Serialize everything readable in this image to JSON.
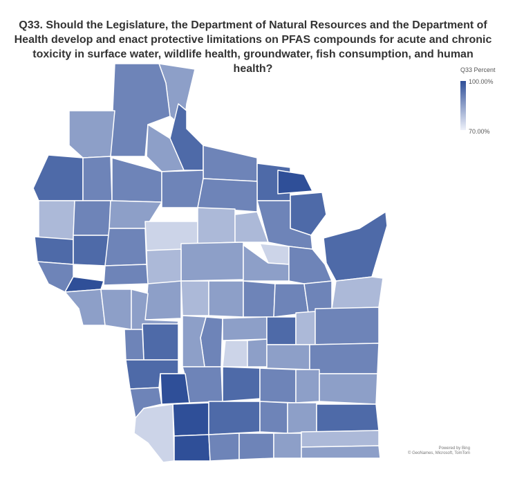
{
  "title": "Q33. Should the Legislature, the Department of Natural Resources and the Department of Health develop and enact protective limitations on PFAS compounds for acute and chronic toxicity in surface water, wildlife health, groundwater, fish consumption, and human health?",
  "legend": {
    "title": "Q33 Percent",
    "max_label": "100.00%",
    "min_label": "70.00%",
    "min_value": 70,
    "max_value": 100,
    "color_high": "#2f4f98",
    "color_low": "#eef1fa"
  },
  "credits": {
    "line1": "Powered by Bing",
    "line2": "© GeoNames, Microsoft, TomTom"
  }
}
